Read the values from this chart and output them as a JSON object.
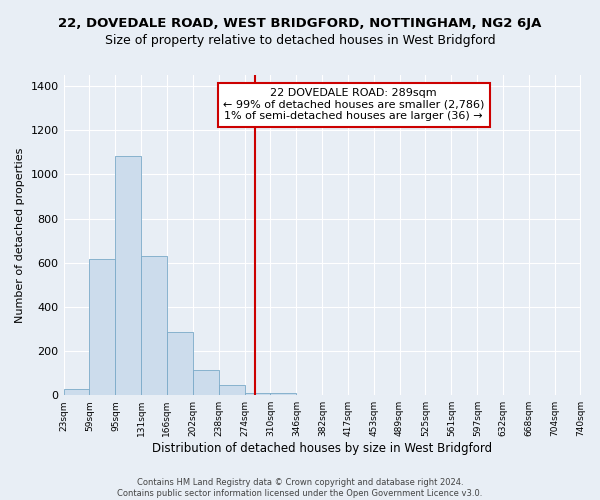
{
  "title": "22, DOVEDALE ROAD, WEST BRIDGFORD, NOTTINGHAM, NG2 6JA",
  "subtitle": "Size of property relative to detached houses in West Bridgford",
  "xlabel": "Distribution of detached houses by size in West Bridgford",
  "ylabel": "Number of detached properties",
  "bar_edges": [
    23,
    59,
    95,
    131,
    166,
    202,
    238,
    274,
    310,
    346,
    382,
    417,
    453,
    489,
    525,
    561,
    597,
    632,
    668,
    704,
    740
  ],
  "bar_heights": [
    30,
    615,
    1085,
    630,
    285,
    115,
    45,
    10,
    10,
    0,
    0,
    0,
    0,
    0,
    0,
    0,
    0,
    0,
    0,
    0
  ],
  "bar_color": "#ccdcec",
  "bar_edge_color": "#7aaac8",
  "property_size": 289,
  "property_line_color": "#cc0000",
  "annotation_title": "22 DOVEDALE ROAD: 289sqm",
  "annotation_line1": "← 99% of detached houses are smaller (2,786)",
  "annotation_line2": "1% of semi-detached houses are larger (36) →",
  "annotation_box_color": "#ffffff",
  "annotation_box_edge_color": "#cc0000",
  "ylim": [
    0,
    1450
  ],
  "yticks": [
    0,
    200,
    400,
    600,
    800,
    1000,
    1200,
    1400
  ],
  "tick_labels": [
    "23sqm",
    "59sqm",
    "95sqm",
    "131sqm",
    "166sqm",
    "202sqm",
    "238sqm",
    "274sqm",
    "310sqm",
    "346sqm",
    "382sqm",
    "417sqm",
    "453sqm",
    "489sqm",
    "525sqm",
    "561sqm",
    "597sqm",
    "632sqm",
    "668sqm",
    "704sqm",
    "740sqm"
  ],
  "footer_line1": "Contains HM Land Registry data © Crown copyright and database right 2024.",
  "footer_line2": "Contains public sector information licensed under the Open Government Licence v3.0.",
  "bg_color": "#e8eef5",
  "plot_bg_color": "#e8eef5",
  "title_fontsize": 9.5,
  "subtitle_fontsize": 9,
  "annotation_fontsize": 8,
  "ylabel_fontsize": 8,
  "xlabel_fontsize": 8.5,
  "footer_fontsize": 6,
  "ytick_fontsize": 8,
  "xtick_fontsize": 6.5
}
